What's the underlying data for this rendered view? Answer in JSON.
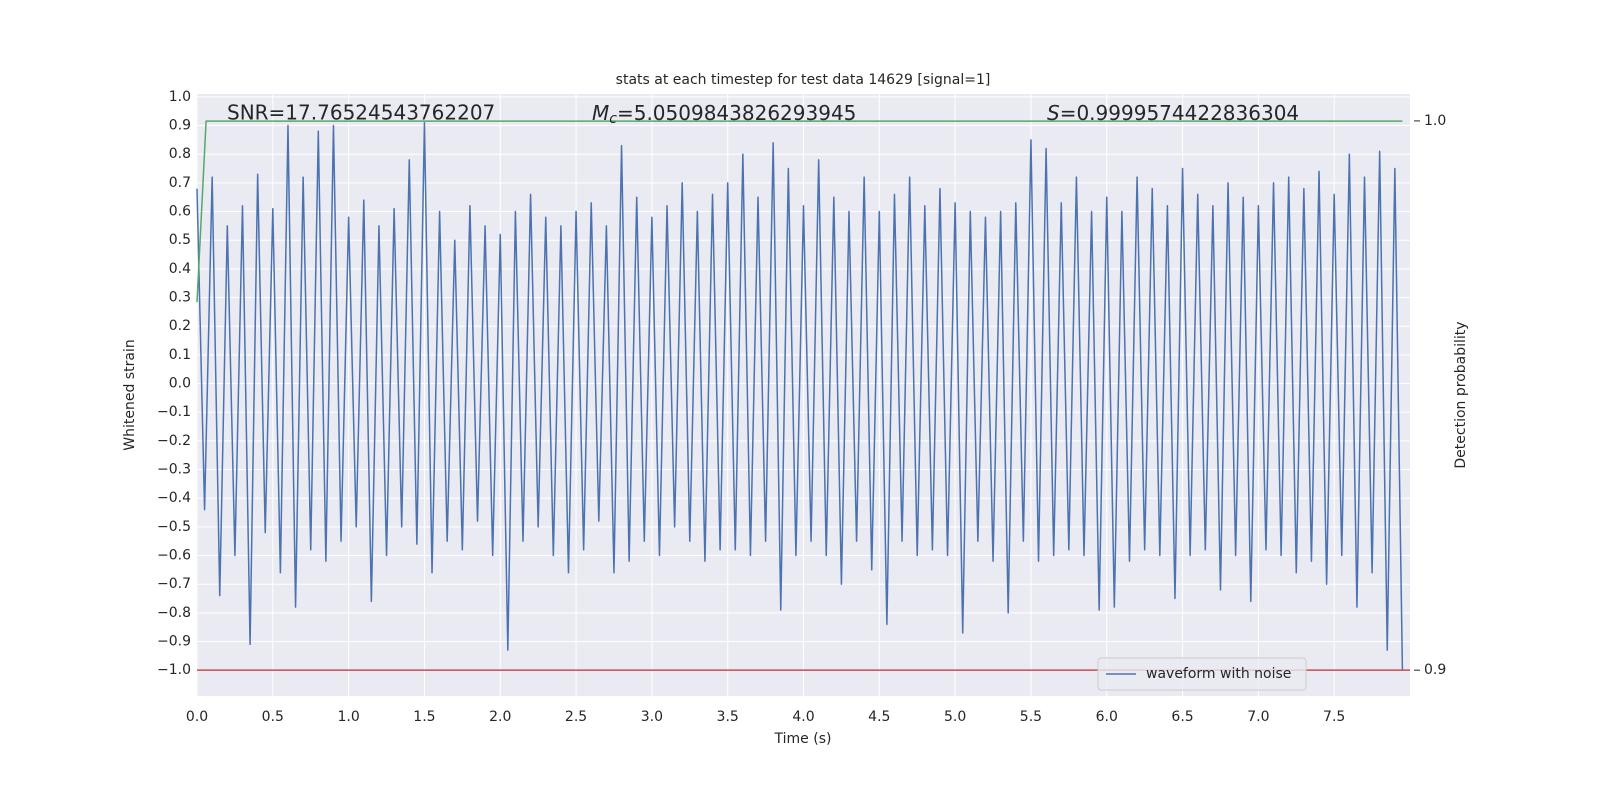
{
  "chart_data": {
    "type": "line",
    "title": "stats at each timestep for test data 14629 [signal=1]",
    "xlabel": "Time (s)",
    "ylabel": "Whitened strain",
    "y2label": "Detection probability",
    "annotations": [
      {
        "text": "SNR=17.76524543762207"
      },
      {
        "symbol": "M",
        "subscript": "c",
        "text": "=5.0509843826293945"
      },
      {
        "symbol": "S",
        "text": "=0.9999574422836304"
      }
    ],
    "xlim": [
      0,
      8.0
    ],
    "xticks": [
      {
        "value": 0,
        "label": "0.0"
      },
      0.5,
      {
        "value": 1,
        "label": "1.0"
      },
      1.5,
      {
        "value": 2,
        "label": "2.0"
      },
      2.5,
      {
        "value": 3,
        "label": "3.0"
      },
      3.5,
      {
        "value": 4,
        "label": "4.0"
      },
      4.5,
      {
        "value": 5,
        "label": "5.0"
      },
      5.5,
      {
        "value": 6,
        "label": "6.0"
      },
      6.5,
      {
        "value": 7,
        "label": "7.0"
      },
      7.5
    ],
    "ylim": [
      -1.09,
      1.01
    ],
    "yticks": [
      {
        "value": -1,
        "label": "−1.0"
      },
      {
        "value": -0.9,
        "label": "−0.9"
      },
      {
        "value": -0.8,
        "label": "−0.8"
      },
      {
        "value": -0.7,
        "label": "−0.7"
      },
      {
        "value": -0.6,
        "label": "−0.6"
      },
      {
        "value": -0.5,
        "label": "−0.5"
      },
      {
        "value": -0.4,
        "label": "−0.4"
      },
      {
        "value": -0.3,
        "label": "−0.3"
      },
      {
        "value": -0.2,
        "label": "−0.2"
      },
      {
        "value": -0.1,
        "label": "−0.1"
      },
      {
        "value": 0,
        "label": "0.0"
      },
      0.1,
      0.2,
      0.3,
      0.4,
      0.5,
      0.6,
      0.7,
      0.8,
      0.9,
      {
        "value": 1,
        "label": "1.0"
      }
    ],
    "y2lim": [
      0.8953,
      1.0049
    ],
    "y2ticks": [
      0.9,
      {
        "value": 1,
        "label": "1.0"
      }
    ],
    "grid": true,
    "legend": "lower right",
    "series": [
      {
        "name": "waveform with noise",
        "color": "#4c72b0",
        "x": [
          0,
          0.05,
          0.1,
          0.15,
          0.2,
          0.25,
          0.3,
          0.35,
          0.4,
          0.45,
          0.5,
          0.55,
          0.6,
          0.65,
          0.7,
          0.75,
          0.8,
          0.85,
          0.9,
          0.95,
          1,
          1.05,
          1.1,
          1.15,
          1.2,
          1.25,
          1.3,
          1.35,
          1.4,
          1.45,
          1.5,
          1.55,
          1.6,
          1.65,
          1.7,
          1.75,
          1.8,
          1.85,
          1.9,
          1.95,
          2,
          2.05,
          2.1,
          2.15,
          2.2,
          2.25,
          2.3,
          2.35,
          2.4,
          2.45,
          2.5,
          2.55,
          2.6,
          2.65,
          2.7,
          2.75,
          2.8,
          2.85,
          2.9,
          2.95,
          3,
          3.05,
          3.1,
          3.15,
          3.2,
          3.25,
          3.3,
          3.35,
          3.4,
          3.45,
          3.5,
          3.55,
          3.6,
          3.65,
          3.7,
          3.75,
          3.8,
          3.85,
          3.9,
          3.95,
          4,
          4.05,
          4.1,
          4.15,
          4.2,
          4.25,
          4.3,
          4.35,
          4.4,
          4.45,
          4.5,
          4.55,
          4.6,
          4.65,
          4.7,
          4.75,
          4.8,
          4.85,
          4.9,
          4.95,
          5,
          5.05,
          5.1,
          5.15,
          5.2,
          5.25,
          5.3,
          5.35,
          5.4,
          5.45,
          5.5,
          5.55,
          5.6,
          5.65,
          5.7,
          5.75,
          5.8,
          5.85,
          5.9,
          5.95,
          6,
          6.05,
          6.1,
          6.15,
          6.2,
          6.25,
          6.3,
          6.35,
          6.4,
          6.45,
          6.5,
          6.55,
          6.6,
          6.65,
          6.7,
          6.75,
          6.8,
          6.85,
          6.9,
          6.95,
          7,
          7.05,
          7.1,
          7.15,
          7.2,
          7.25,
          7.3,
          7.35,
          7.4,
          7.45,
          7.5,
          7.55,
          7.6,
          7.65,
          7.7,
          7.75,
          7.8,
          7.85,
          7.9,
          7.95
        ],
        "values": [
          0.68,
          -0.44,
          0.72,
          -0.74,
          0.55,
          -0.6,
          0.62,
          -0.91,
          0.73,
          -0.52,
          0.61,
          -0.66,
          0.9,
          -0.78,
          0.72,
          -0.58,
          0.88,
          -0.62,
          0.9,
          -0.55,
          0.58,
          -0.5,
          0.64,
          -0.76,
          0.55,
          -0.6,
          0.61,
          -0.5,
          0.78,
          -0.56,
          0.91,
          -0.66,
          0.6,
          -0.55,
          0.5,
          -0.58,
          0.62,
          -0.48,
          0.55,
          -0.6,
          0.52,
          -0.93,
          0.6,
          -0.55,
          0.66,
          -0.5,
          0.58,
          -0.6,
          0.55,
          -0.66,
          0.6,
          -0.58,
          0.63,
          -0.48,
          0.55,
          -0.66,
          0.83,
          -0.62,
          0.65,
          -0.55,
          0.58,
          -0.6,
          0.62,
          -0.5,
          0.7,
          -0.55,
          0.6,
          -0.62,
          0.66,
          -0.58,
          0.7,
          -0.58,
          0.8,
          -0.6,
          0.65,
          -0.55,
          0.84,
          -0.79,
          0.75,
          -0.6,
          0.62,
          -0.55,
          0.78,
          -0.6,
          0.65,
          -0.7,
          0.6,
          -0.55,
          0.72,
          -0.65,
          0.6,
          -0.84,
          0.66,
          -0.55,
          0.72,
          -0.6,
          0.62,
          -0.58,
          0.68,
          -0.6,
          0.63,
          -0.87,
          0.6,
          -0.55,
          0.58,
          -0.62,
          0.6,
          -0.8,
          0.63,
          -0.55,
          0.85,
          -0.62,
          0.82,
          -0.6,
          0.63,
          -0.58,
          0.72,
          -0.6,
          0.6,
          -0.79,
          0.65,
          -0.78,
          0.6,
          -0.62,
          0.72,
          -0.58,
          0.68,
          -0.6,
          0.62,
          -0.75,
          0.75,
          -0.6,
          0.66,
          -0.58,
          0.62,
          -0.72,
          0.7,
          -0.6,
          0.65,
          -0.76,
          0.62,
          -0.58,
          0.7,
          -0.6,
          0.72,
          -0.66,
          0.68,
          -0.62,
          0.74,
          -0.7,
          0.66,
          -0.6,
          0.8,
          -0.78,
          0.72,
          -0.66,
          0.81,
          -0.93,
          0.75,
          -1.0
        ]
      },
      {
        "color": "#55a868",
        "axis": "y2",
        "x": [
          0,
          0.06,
          7.95
        ],
        "values": [
          0.967,
          0.99996,
          0.99996
        ]
      },
      {
        "color": "#c44e52",
        "axis": "y2",
        "x": [
          0,
          8.0
        ],
        "values": [
          0.9,
          0.9
        ]
      }
    ]
  }
}
